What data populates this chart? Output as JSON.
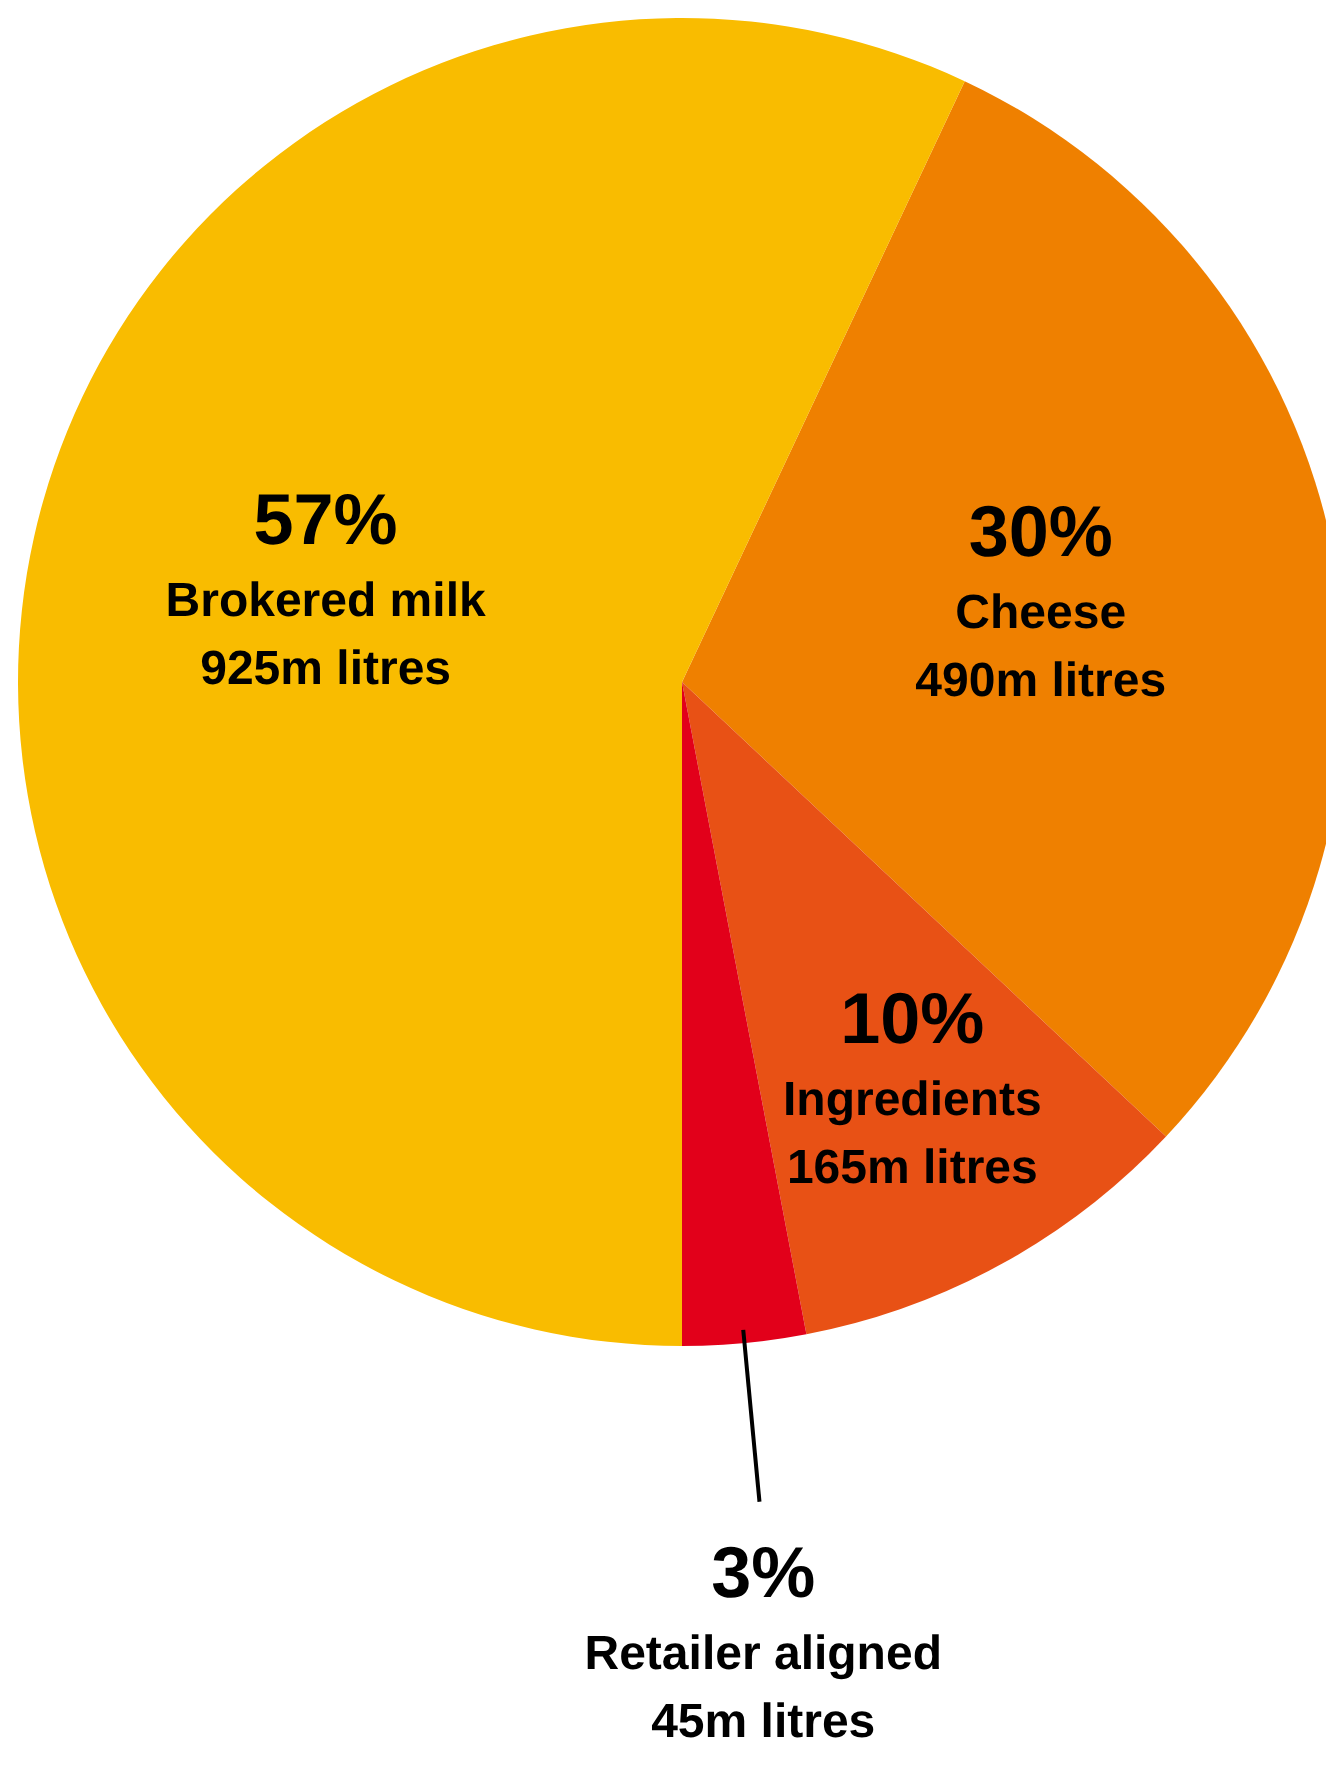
{
  "chart_data": {
    "type": "pie",
    "categories": [
      "Cheese",
      "Ingredients",
      "Retailer aligned",
      "Brokered milk"
    ],
    "values": [
      30,
      10,
      3,
      57
    ],
    "colors": [
      "#ef8000",
      "#e85115",
      "#e2001a",
      "#f9bc00"
    ],
    "value_labels": [
      "30%",
      "10%",
      "3%",
      "57%"
    ],
    "annotations": [
      "490m litres",
      "165m litres",
      "45m litres",
      "925m litres"
    ]
  }
}
